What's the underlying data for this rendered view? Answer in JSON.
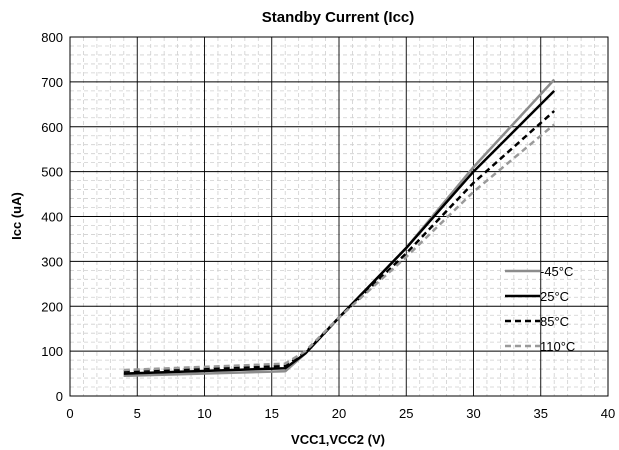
{
  "chart_data": {
    "type": "line",
    "title": "Standby Current (Icc)",
    "xlabel": "VCC1,VCC2 (V)",
    "ylabel": "Icc (uA)",
    "xlim": [
      0,
      40
    ],
    "ylim": [
      0,
      800
    ],
    "xticks": [
      0,
      5,
      10,
      15,
      20,
      25,
      30,
      35,
      40
    ],
    "yticks": [
      0,
      100,
      200,
      300,
      400,
      500,
      600,
      700,
      800
    ],
    "grid": true,
    "minor_grid": true,
    "legend_position": "right, middle-lower",
    "series": [
      {
        "name": "-45°C",
        "color": "#8c8c8c",
        "dash": "solid",
        "points": [
          [
            4,
            45
          ],
          [
            16,
            55
          ],
          [
            17.5,
            95
          ],
          [
            20,
            175
          ],
          [
            25,
            330
          ],
          [
            30,
            510
          ],
          [
            36,
            705
          ]
        ]
      },
      {
        "name": "25°C",
        "color": "#000000",
        "dash": "solid",
        "points": [
          [
            4,
            50
          ],
          [
            16,
            62
          ],
          [
            17.5,
            95
          ],
          [
            20,
            175
          ],
          [
            25,
            330
          ],
          [
            30,
            500
          ],
          [
            36,
            680
          ]
        ]
      },
      {
        "name": "85°C",
        "color": "#000000",
        "dash": "dashed",
        "points": [
          [
            4,
            55
          ],
          [
            16,
            67
          ],
          [
            17.5,
            97
          ],
          [
            20,
            175
          ],
          [
            25,
            318
          ],
          [
            30,
            475
          ],
          [
            36,
            635
          ]
        ]
      },
      {
        "name": "110°C",
        "color": "#9a9a9a",
        "dash": "dashed",
        "points": [
          [
            4,
            58
          ],
          [
            16,
            72
          ],
          [
            17.5,
            100
          ],
          [
            20,
            175
          ],
          [
            25,
            310
          ],
          [
            30,
            455
          ],
          [
            36,
            605
          ]
        ]
      }
    ]
  }
}
